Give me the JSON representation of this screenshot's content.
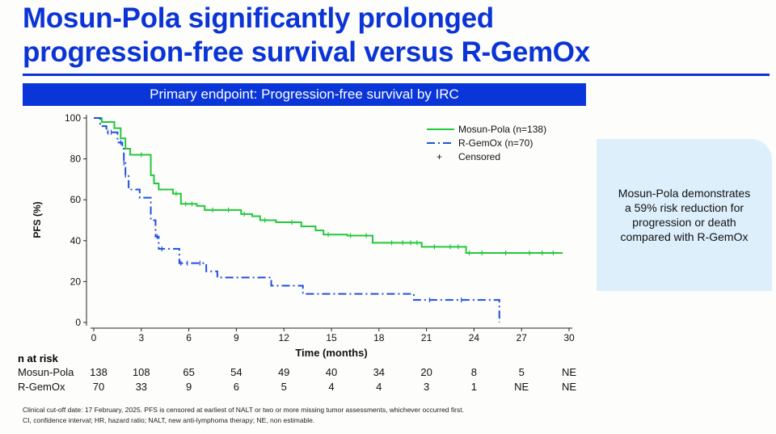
{
  "title_line1": "Mosun-Pola significantly prolonged",
  "title_line2": "progression-free survival versus R-GemOx",
  "banner": "Primary endpoint: Progression-free survival by IRC",
  "callout": "Mosun-Pola demonstrates a 59% risk reduction for progression or death compared with R-GemOx",
  "colors": {
    "accent": "#0b34d6",
    "mosun_pola": "#22c83c",
    "r_gemox": "#1f4fe0",
    "callout_bg": "#dcefFb"
  },
  "chart_data": {
    "type": "line",
    "subtype": "kaplan-meier step",
    "xlabel": "Time (months)",
    "ylabel": "PFS (%)",
    "xlim": [
      0,
      30
    ],
    "ylim": [
      0,
      100
    ],
    "xticks": [
      "0",
      "3",
      "6",
      "9",
      "12",
      "15",
      "18",
      "21",
      "24",
      "27",
      "30"
    ],
    "yticks": [
      "0",
      "20",
      "40",
      "60",
      "80",
      "100"
    ],
    "grid": false,
    "legend_placement": "top-right",
    "legend": [
      "Mosun-Pola (n=138)",
      "R-GemOx (n=70)",
      "Censored"
    ],
    "series": [
      {
        "name": "Mosun-Pola (n=138)",
        "style": "solid",
        "points": [
          [
            0,
            100
          ],
          [
            0.5,
            98
          ],
          [
            1.3,
            95
          ],
          [
            1.7,
            90
          ],
          [
            2.0,
            85
          ],
          [
            2.3,
            82
          ],
          [
            3.6,
            72
          ],
          [
            3.8,
            68
          ],
          [
            4.1,
            65
          ],
          [
            5.0,
            63
          ],
          [
            5.5,
            58
          ],
          [
            6.5,
            57
          ],
          [
            7.0,
            55
          ],
          [
            9.3,
            53
          ],
          [
            10.0,
            52
          ],
          [
            10.5,
            50
          ],
          [
            11.5,
            49
          ],
          [
            13.1,
            47
          ],
          [
            14.0,
            45
          ],
          [
            14.5,
            43
          ],
          [
            16.0,
            42.5
          ],
          [
            17.6,
            39
          ],
          [
            20.7,
            37
          ],
          [
            23.5,
            34
          ],
          [
            29.6,
            34
          ]
        ],
        "censored": [
          3.0,
          5.2,
          5.8,
          6.2,
          7.5,
          8.5,
          9.5,
          10.8,
          12.5,
          14.8,
          16.2,
          17.2,
          18.8,
          19.5,
          20.0,
          20.4,
          21.5,
          22.5,
          23.0,
          23.7,
          24.5,
          26.0,
          27.5,
          28.3,
          29.0
        ]
      },
      {
        "name": "R-GemOx (n=70)",
        "style": "dash-dot",
        "points": [
          [
            0,
            100
          ],
          [
            0.4,
            96
          ],
          [
            0.8,
            93
          ],
          [
            1.5,
            88
          ],
          [
            1.8,
            85
          ],
          [
            1.9,
            78
          ],
          [
            2.0,
            72
          ],
          [
            2.2,
            65
          ],
          [
            2.9,
            61
          ],
          [
            3.6,
            50
          ],
          [
            3.9,
            42
          ],
          [
            4.1,
            36
          ],
          [
            5.4,
            29
          ],
          [
            7.1,
            25
          ],
          [
            7.8,
            22
          ],
          [
            11.2,
            18
          ],
          [
            13.2,
            14
          ],
          [
            20.2,
            11
          ],
          [
            25.5,
            11
          ],
          [
            25.6,
            0
          ]
        ],
        "censored": [
          0.9,
          1.1,
          1.7,
          1.9,
          2.0,
          4.0,
          4.3,
          5.5,
          5.9,
          6.7,
          21.2,
          23.2
        ]
      }
    ]
  },
  "risk_table": {
    "header": "n at risk",
    "rows": [
      {
        "label": "Mosun-Pola",
        "values": [
          "138",
          "108",
          "65",
          "54",
          "49",
          "40",
          "34",
          "20",
          "8",
          "5",
          "NE"
        ]
      },
      {
        "label": "R-GemOx",
        "values": [
          "70",
          "33",
          "9",
          "6",
          "5",
          "4",
          "4",
          "3",
          "1",
          "NE",
          "NE"
        ]
      }
    ]
  },
  "footnotes": [
    "Clinical cut-off date: 17 February, 2025. PFS is censored at earliest of NALT or two or more missing tumor assessments, whichever occurred first.",
    "CI, confidence interval; HR, hazard ratio; NALT, new anti-lymphoma therapy; NE, non estimable."
  ]
}
